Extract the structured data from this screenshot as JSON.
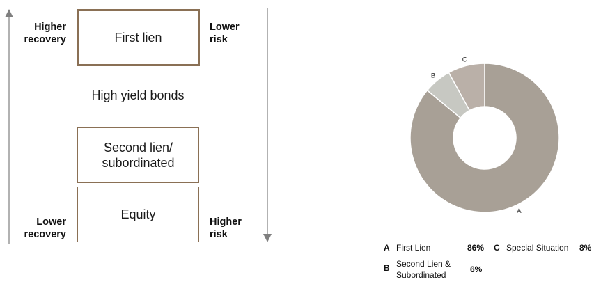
{
  "hierarchy": {
    "left_top": [
      "Higher",
      "recovery"
    ],
    "left_bottom": [
      "Lower",
      "recovery"
    ],
    "right_top": [
      "Lower",
      "risk"
    ],
    "right_bottom": [
      "Higher",
      "risk"
    ],
    "box_first_lien": "First lien",
    "middle_text": "High yield bonds",
    "box_second_lien": [
      "Second lien/",
      "subordinated"
    ],
    "box_equity": "Equity"
  },
  "colors": {
    "box_border": "#8a7055",
    "arrow": "#7f7f7f",
    "slice_a": "#a8a096",
    "slice_b": "#c7c8c2",
    "slice_c": "#bab0a8"
  },
  "chart_data": {
    "type": "pie",
    "donut": true,
    "slices": [
      {
        "key": "A",
        "name": "First Lien",
        "value": 86,
        "label": "86%"
      },
      {
        "key": "B",
        "name": "Second Lien & Subordinated",
        "value": 6,
        "label": "6%"
      },
      {
        "key": "C",
        "name": "Special Situation",
        "value": 8,
        "label": "8%"
      }
    ],
    "legend": {
      "a_key": "A",
      "a_name": "First Lien",
      "a_value": "86%",
      "b_key": "B",
      "b_name_1": "Second Lien &",
      "b_name_2": "Subordinated",
      "b_value": "6%",
      "c_key": "C",
      "c_name": "Special Situation",
      "c_value": "8%"
    }
  }
}
